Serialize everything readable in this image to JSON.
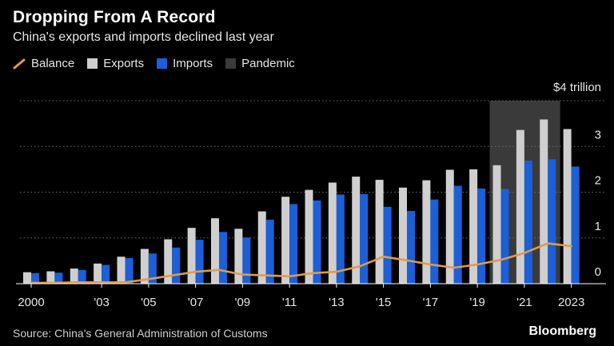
{
  "header": {
    "title": "Dropping From A Record",
    "subtitle": "China's exports and imports declined last year"
  },
  "legend": {
    "items": [
      {
        "label": "Balance",
        "color": "#e09a4b",
        "kind": "line"
      },
      {
        "label": "Exports",
        "color": "#cfcfcf",
        "kind": "box"
      },
      {
        "label": "Imports",
        "color": "#1c5fd6",
        "kind": "box"
      },
      {
        "label": "Pandemic",
        "color": "#3a3a3a",
        "kind": "box"
      }
    ]
  },
  "footer": {
    "source": "Source: China's General Administration of Customs",
    "brand": "Bloomberg"
  },
  "chart_data": {
    "type": "bar",
    "x": [
      2000,
      2001,
      2002,
      2003,
      2004,
      2005,
      2006,
      2007,
      2008,
      2009,
      2010,
      2011,
      2012,
      2013,
      2014,
      2015,
      2016,
      2017,
      2018,
      2019,
      2020,
      2021,
      2022,
      2023
    ],
    "x_tick_labels": [
      "2000",
      "'03",
      "'05",
      "'07",
      "'09",
      "'11",
      "'13",
      "'15",
      "'17",
      "'19",
      "'21",
      "2023"
    ],
    "x_tick_years": [
      2000,
      2003,
      2005,
      2007,
      2009,
      2011,
      2013,
      2015,
      2017,
      2019,
      2021,
      2023
    ],
    "y_tick_labels": [
      "0",
      "1",
      "2",
      "3",
      "$4 trillion"
    ],
    "y_ticks": [
      0,
      1,
      2,
      3,
      4
    ],
    "ylim": [
      0,
      4
    ],
    "grid": true,
    "series": [
      {
        "name": "Exports",
        "kind": "bar",
        "color": "#cfcfcf",
        "values": [
          0.25,
          0.27,
          0.33,
          0.44,
          0.59,
          0.76,
          0.97,
          1.22,
          1.43,
          1.2,
          1.58,
          1.9,
          2.05,
          2.21,
          2.34,
          2.27,
          2.1,
          2.26,
          2.49,
          2.5,
          2.59,
          3.36,
          3.59,
          3.38
        ]
      },
      {
        "name": "Imports",
        "kind": "bar",
        "color": "#1c5fd6",
        "values": [
          0.23,
          0.24,
          0.3,
          0.41,
          0.56,
          0.66,
          0.79,
          0.96,
          1.13,
          1.01,
          1.4,
          1.74,
          1.82,
          1.95,
          1.96,
          1.68,
          1.59,
          1.84,
          2.14,
          2.08,
          2.07,
          2.69,
          2.72,
          2.56
        ]
      },
      {
        "name": "Balance",
        "kind": "line",
        "color": "#e09a4b",
        "values": [
          0.02,
          0.02,
          0.03,
          0.03,
          0.03,
          0.1,
          0.18,
          0.26,
          0.3,
          0.2,
          0.18,
          0.16,
          0.23,
          0.26,
          0.38,
          0.59,
          0.51,
          0.42,
          0.35,
          0.42,
          0.52,
          0.67,
          0.88,
          0.82
        ]
      }
    ],
    "shaded_periods": [
      {
        "name": "Pandemic",
        "start": 2020,
        "end": 2022,
        "color": "#3a3a3a"
      }
    ]
  }
}
